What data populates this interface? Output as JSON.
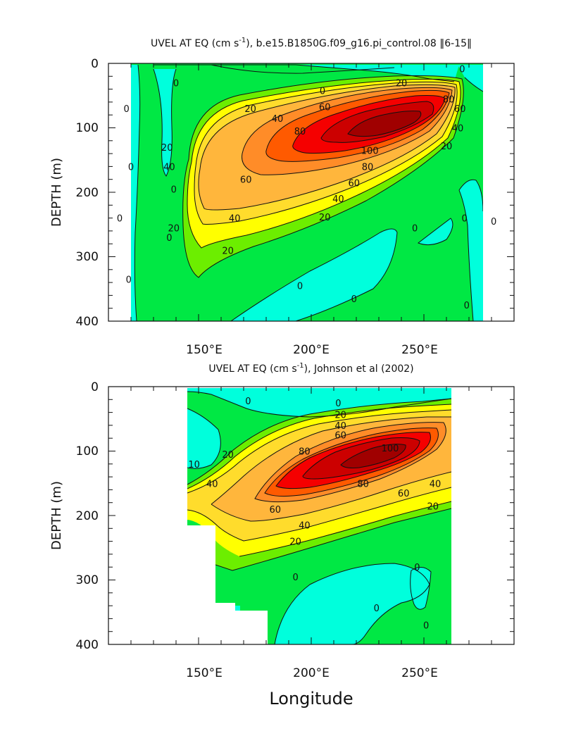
{
  "chart_data": [
    {
      "type": "heatmap",
      "subtype": "filled-contour",
      "title_prefix": "UVEL AT EQ (cm s",
      "title_sup": "-1",
      "title_suffix": "), b.e15.B1850G.f09_g16.pi_control.08 ‖6-15‖",
      "xlabel": "",
      "ylabel": "DEPTH (m)",
      "xlim": [
        110,
        290
      ],
      "ylim": [
        400,
        0
      ],
      "x_ticks": [
        150,
        200,
        250
      ],
      "x_tick_labels": [
        "150°E",
        "200°E",
        "250°E"
      ],
      "y_ticks": [
        0,
        100,
        200,
        300,
        400
      ],
      "y_tick_labels": [
        "0",
        "100",
        "200",
        "300",
        "400"
      ],
      "data_extent_lon": [
        116,
        279
      ],
      "core": {
        "lon": 233,
        "depth": 110,
        "max_speed": 100
      },
      "contour_levels": [
        -20,
        -10,
        0,
        10,
        20,
        30,
        40,
        50,
        60,
        70,
        80,
        90,
        100
      ],
      "contour_labels": [
        {
          "text": "20",
          "lon": 240,
          "depth": 30
        },
        {
          "text": "0",
          "lon": 205,
          "depth": 42
        },
        {
          "text": "0",
          "lon": 140,
          "depth": 30
        },
        {
          "text": "20",
          "lon": 173,
          "depth": 70
        },
        {
          "text": "40",
          "lon": 185,
          "depth": 85
        },
        {
          "text": "60",
          "lon": 206,
          "depth": 67
        },
        {
          "text": "80",
          "lon": 195,
          "depth": 105
        },
        {
          "text": "80",
          "lon": 261,
          "depth": 55
        },
        {
          "text": "60",
          "lon": 266,
          "depth": 70
        },
        {
          "text": "40",
          "lon": 265,
          "depth": 100
        },
        {
          "text": "20",
          "lon": 260,
          "depth": 128
        },
        {
          "text": "100",
          "lon": 226,
          "depth": 135
        },
        {
          "text": "80",
          "lon": 225,
          "depth": 160
        },
        {
          "text": "60",
          "lon": 219,
          "depth": 185
        },
        {
          "text": "40",
          "lon": 212,
          "depth": 210
        },
        {
          "text": "20",
          "lon": 206,
          "depth": 238
        },
        {
          "text": "60",
          "lon": 171,
          "depth": 180
        },
        {
          "text": "40",
          "lon": 166,
          "depth": 240
        },
        {
          "text": "20",
          "lon": 163,
          "depth": 290
        },
        {
          "text": "40",
          "lon": 137,
          "depth": 160
        },
        {
          "text": "20",
          "lon": 136,
          "depth": 130
        },
        {
          "text": "20",
          "lon": 139,
          "depth": 255
        },
        {
          "text": "0",
          "lon": 118,
          "depth": 70
        },
        {
          "text": "0",
          "lon": 120,
          "depth": 160
        },
        {
          "text": "0",
          "lon": 115,
          "depth": 240
        },
        {
          "text": "0",
          "lon": 119,
          "depth": 335
        },
        {
          "text": "0",
          "lon": 137,
          "depth": 270
        },
        {
          "text": "0",
          "lon": 139,
          "depth": 195
        },
        {
          "text": "0",
          "lon": 195,
          "depth": 345
        },
        {
          "text": "0",
          "lon": 219,
          "depth": 365
        },
        {
          "text": "0",
          "lon": 246,
          "depth": 255
        },
        {
          "text": "0",
          "lon": 268,
          "depth": 240
        },
        {
          "text": "0",
          "lon": 281,
          "depth": 245
        },
        {
          "text": "0",
          "lon": 269,
          "depth": 375
        },
        {
          "text": "0",
          "lon": 267,
          "depth": 8
        }
      ]
    },
    {
      "type": "heatmap",
      "subtype": "filled-contour",
      "title_prefix": "UVEL AT EQ (cm s",
      "title_sup": "-1",
      "title_suffix": "), Johnson et al (2002)",
      "xlabel": "Longitude",
      "ylabel": "DEPTH (m)",
      "xlim": [
        110,
        290
      ],
      "ylim": [
        400,
        0
      ],
      "x_ticks": [
        150,
        200,
        250
      ],
      "x_tick_labels": [
        "150°E",
        "200°E",
        "250°E"
      ],
      "y_ticks": [
        0,
        100,
        200,
        300,
        400
      ],
      "y_tick_labels": [
        "0",
        "100",
        "200",
        "300",
        "400"
      ],
      "data_extent_lon": [
        143,
        265
      ],
      "masked_region": [
        [
          143,
          215
        ],
        [
          156,
          215
        ],
        [
          156,
          335
        ],
        [
          166,
          335
        ],
        [
          166,
          347
        ],
        [
          180,
          347
        ],
        [
          180,
          400
        ],
        [
          143,
          400
        ]
      ],
      "core": {
        "lon": 228,
        "depth": 110,
        "max_speed": 100
      },
      "contour_levels": [
        -20,
        -10,
        0,
        10,
        20,
        30,
        40,
        50,
        60,
        70,
        80,
        90,
        100
      ],
      "contour_labels": [
        {
          "text": "0",
          "lon": 212,
          "depth": 25
        },
        {
          "text": "20",
          "lon": 213,
          "depth": 43
        },
        {
          "text": "40",
          "lon": 213,
          "depth": 60
        },
        {
          "text": "60",
          "lon": 213,
          "depth": 75
        },
        {
          "text": "0",
          "lon": 172,
          "depth": 22
        },
        {
          "text": "20",
          "lon": 163,
          "depth": 105
        },
        {
          "text": "40",
          "lon": 156,
          "depth": 150
        },
        {
          "text": "80",
          "lon": 197,
          "depth": 100
        },
        {
          "text": "100",
          "lon": 235,
          "depth": 95
        },
        {
          "text": "80",
          "lon": 223,
          "depth": 150
        },
        {
          "text": "60",
          "lon": 241,
          "depth": 165
        },
        {
          "text": "40",
          "lon": 255,
          "depth": 150
        },
        {
          "text": "20",
          "lon": 254,
          "depth": 185
        },
        {
          "text": "60",
          "lon": 184,
          "depth": 190
        },
        {
          "text": "40",
          "lon": 197,
          "depth": 215
        },
        {
          "text": "20",
          "lon": 193,
          "depth": 240
        },
        {
          "text": "0",
          "lon": 193,
          "depth": 295
        },
        {
          "text": "10",
          "lon": 148,
          "depth": 120
        },
        {
          "text": "0",
          "lon": 247,
          "depth": 280
        },
        {
          "text": "0",
          "lon": 229,
          "depth": 343
        },
        {
          "text": "0",
          "lon": 251,
          "depth": 370
        }
      ]
    }
  ],
  "palette": {
    "neg": "#00ffdc",
    "l0": "#00e844",
    "l20": "#6cee00",
    "l30": "#ffff00",
    "l40": "#ffdc2c",
    "l50": "#ffb63c",
    "l60": "#ff8c28",
    "l70": "#ff5a00",
    "l80": "#f50000",
    "l90": "#cc0000",
    "l100": "#a00000"
  }
}
